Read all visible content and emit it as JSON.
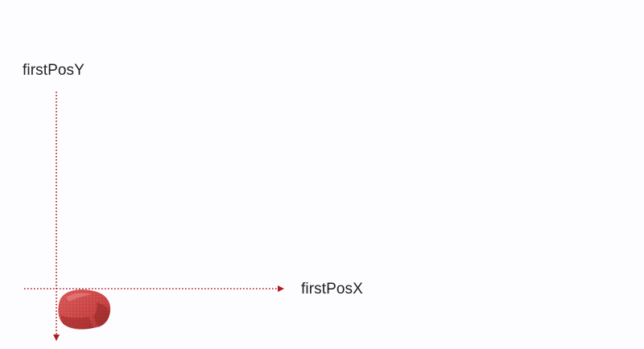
{
  "labels": {
    "y_axis": "firstPosY",
    "x_axis": "firstPosX"
  },
  "colors": {
    "guide_line": "#b01c1c",
    "object_fill": "#cf4a4a",
    "object_shadow": "#9e2a2a",
    "background": "#fdfdff"
  },
  "object": {
    "icon": "red-square-block-icon"
  }
}
